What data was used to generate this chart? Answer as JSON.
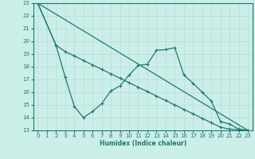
{
  "xlabel": "Humidex (Indice chaleur)",
  "xlim": [
    -0.5,
    23.5
  ],
  "ylim": [
    13,
    23
  ],
  "yticks": [
    13,
    14,
    15,
    16,
    17,
    18,
    19,
    20,
    21,
    22,
    23
  ],
  "xticks": [
    0,
    1,
    2,
    3,
    4,
    5,
    6,
    7,
    8,
    9,
    10,
    11,
    12,
    13,
    14,
    15,
    16,
    17,
    18,
    19,
    20,
    21,
    22,
    23
  ],
  "line_color": "#1f7872",
  "bg_color": "#cceee8",
  "grid_color": "#b0ddd8",
  "line1_x": [
    0,
    1,
    2
  ],
  "line1_y": [
    23,
    22,
    19.7
  ],
  "line2_x": [
    0,
    2,
    3,
    4,
    5,
    6,
    7,
    8,
    9,
    10,
    11,
    12,
    13,
    14,
    15,
    16,
    17,
    18,
    19,
    20,
    21,
    22,
    23
  ],
  "line2_y": [
    23,
    19.7,
    19.2,
    18.85,
    18.5,
    18.15,
    17.8,
    17.45,
    17.1,
    16.75,
    16.4,
    16.05,
    15.7,
    15.35,
    15.0,
    14.65,
    14.3,
    13.95,
    13.6,
    13.25,
    13.1,
    13.05,
    13.0
  ],
  "line3_x": [
    0,
    2,
    3,
    4,
    5,
    6,
    7,
    8,
    9,
    10,
    11,
    12,
    13,
    14,
    15,
    16,
    17,
    18,
    19,
    20,
    21,
    22,
    23
  ],
  "line3_y": [
    23,
    19.7,
    17.2,
    14.9,
    14.0,
    14.5,
    15.1,
    16.1,
    16.5,
    17.35,
    18.1,
    18.2,
    19.3,
    19.35,
    19.5,
    17.35,
    16.7,
    16.0,
    15.3,
    13.7,
    13.5,
    13.1,
    13.0
  ]
}
